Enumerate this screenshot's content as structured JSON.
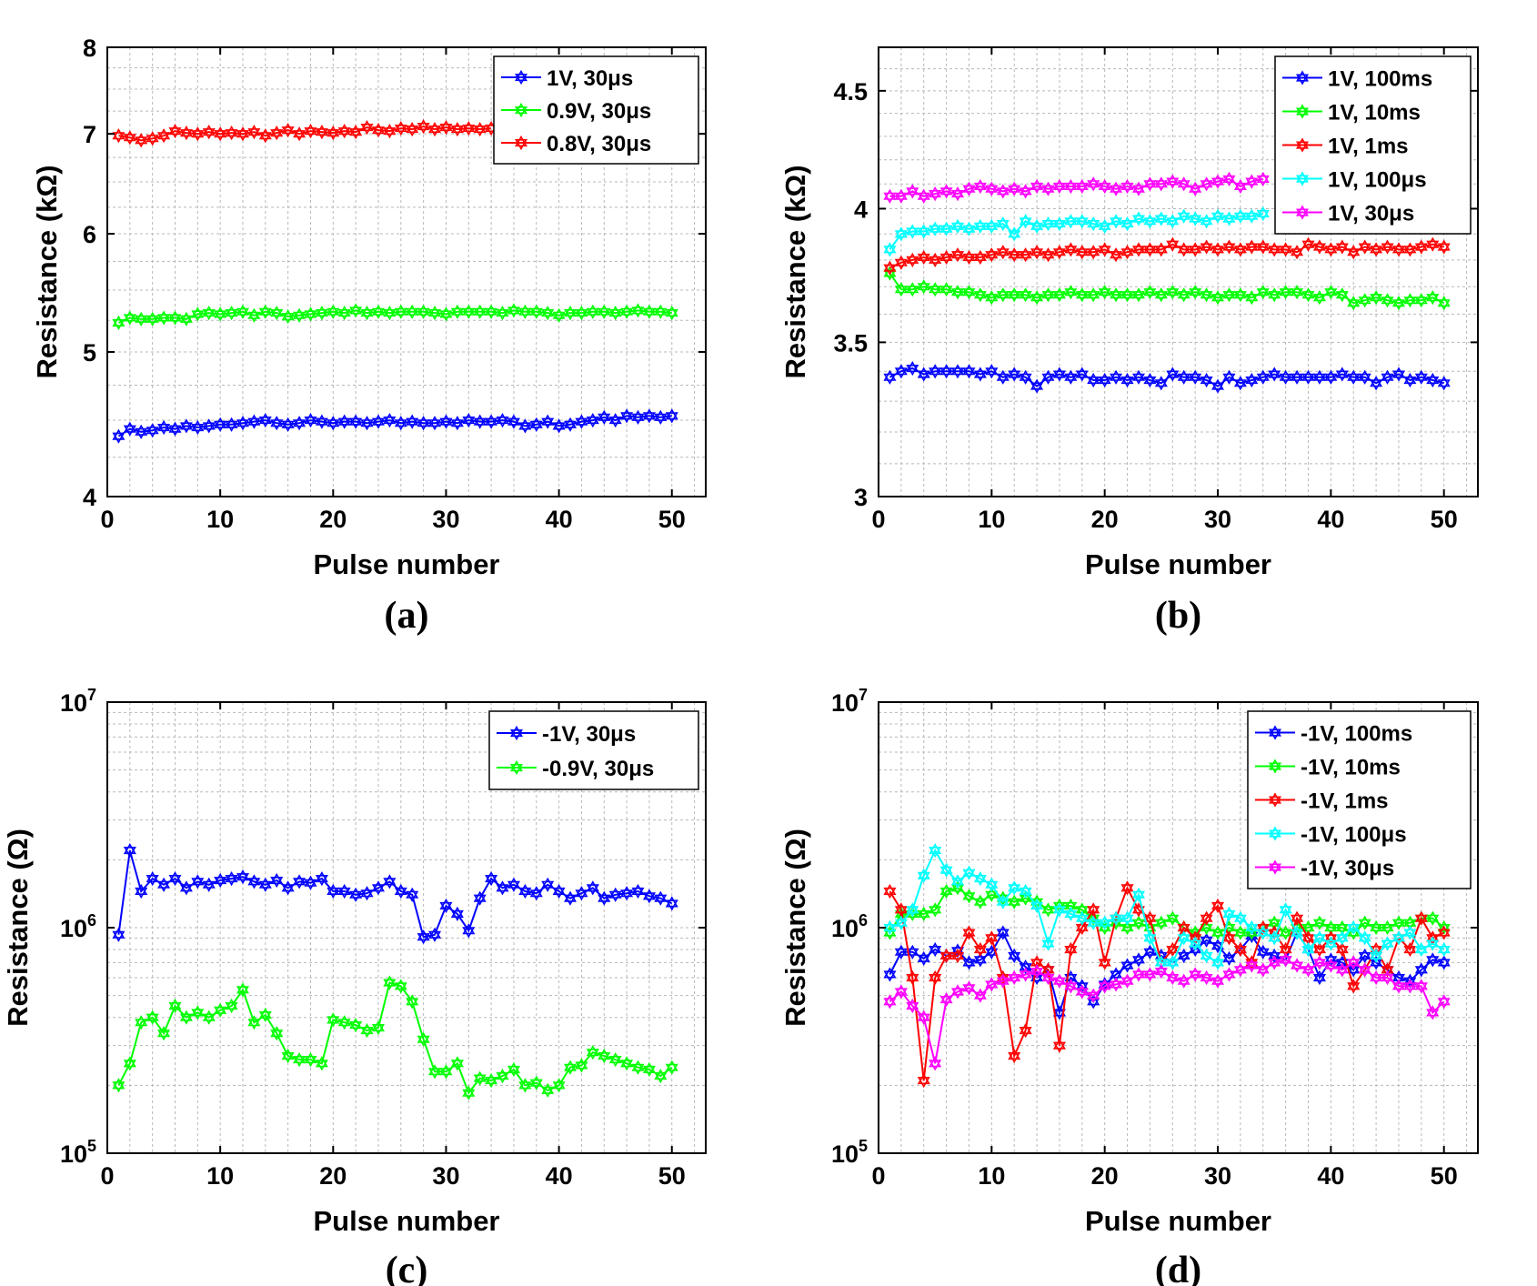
{
  "chart_data": [
    {
      "id": "a",
      "type": "line",
      "caption": "(a)",
      "xlabel": "Pulse number",
      "ylabel": "Resistance (kΩ)",
      "xlim": [
        0,
        53
      ],
      "ylim": [
        4,
        8
      ],
      "yscale": "log",
      "xticks": [
        0,
        10,
        20,
        30,
        40,
        50
      ],
      "yticks": [
        4,
        5,
        6,
        7,
        8
      ],
      "ytick_labels": [
        "4",
        "5",
        "6",
        "7",
        "8"
      ],
      "legend_position": "top-right",
      "series": [
        {
          "name": "1V, 30μs",
          "color": "#0000ff",
          "values": [
            4.39,
            4.44,
            4.42,
            4.43,
            4.45,
            4.44,
            4.46,
            4.45,
            4.46,
            4.47,
            4.47,
            4.48,
            4.49,
            4.5,
            4.48,
            4.47,
            4.48,
            4.5,
            4.49,
            4.48,
            4.49,
            4.49,
            4.48,
            4.49,
            4.5,
            4.48,
            4.49,
            4.48,
            4.48,
            4.49,
            4.48,
            4.5,
            4.49,
            4.49,
            4.5,
            4.49,
            4.46,
            4.47,
            4.49,
            4.46,
            4.47,
            4.49,
            4.5,
            4.52,
            4.5,
            4.53,
            4.52,
            4.53,
            4.52,
            4.53
          ]
        },
        {
          "name": "0.9V, 30μs",
          "color": "#00ff00",
          "values": [
            5.23,
            5.27,
            5.26,
            5.26,
            5.27,
            5.27,
            5.26,
            5.3,
            5.31,
            5.3,
            5.31,
            5.32,
            5.29,
            5.32,
            5.31,
            5.28,
            5.29,
            5.3,
            5.31,
            5.32,
            5.31,
            5.33,
            5.31,
            5.32,
            5.31,
            5.32,
            5.32,
            5.32,
            5.31,
            5.3,
            5.32,
            5.32,
            5.32,
            5.32,
            5.31,
            5.33,
            5.32,
            5.32,
            5.31,
            5.29,
            5.31,
            5.31,
            5.32,
            5.32,
            5.31,
            5.32,
            5.33,
            5.32,
            5.32,
            5.31
          ]
        },
        {
          "name": "0.8V, 30μs",
          "color": "#ff0000",
          "values": [
            6.98,
            6.96,
            6.93,
            6.95,
            6.98,
            7.03,
            7.01,
            7.0,
            7.02,
            7.0,
            7.01,
            7.0,
            7.02,
            6.98,
            7.01,
            7.04,
            7.0,
            7.03,
            7.02,
            7.01,
            7.03,
            7.02,
            7.07,
            7.04,
            7.03,
            7.06,
            7.05,
            7.08,
            7.05,
            7.07,
            7.05,
            7.06,
            7.05,
            7.06
          ]
        }
      ]
    },
    {
      "id": "b",
      "type": "line",
      "caption": "(b)",
      "xlabel": "Pulse number",
      "ylabel": "Resistance (kΩ)",
      "xlim": [
        0,
        53
      ],
      "ylim": [
        3,
        4.7
      ],
      "yscale": "log",
      "xticks": [
        0,
        10,
        20,
        30,
        40,
        50
      ],
      "yticks": [
        3,
        3.5,
        4,
        4.5
      ],
      "ytick_labels": [
        "3",
        "3.5",
        "4",
        "4.5"
      ],
      "legend_position": "top-right",
      "series": [
        {
          "name": "1V, 100ms",
          "color": "#0000ff",
          "values": [
            3.38,
            3.4,
            3.41,
            3.39,
            3.4,
            3.4,
            3.4,
            3.4,
            3.39,
            3.4,
            3.38,
            3.39,
            3.38,
            3.35,
            3.38,
            3.39,
            3.38,
            3.39,
            3.37,
            3.37,
            3.38,
            3.37,
            3.38,
            3.37,
            3.36,
            3.39,
            3.38,
            3.38,
            3.37,
            3.35,
            3.38,
            3.36,
            3.37,
            3.38,
            3.39,
            3.38,
            3.38,
            3.38,
            3.38,
            3.38,
            3.39,
            3.38,
            3.38,
            3.36,
            3.38,
            3.39,
            3.37,
            3.38,
            3.37,
            3.36
          ]
        },
        {
          "name": "1V, 10ms",
          "color": "#00ff00",
          "values": [
            3.75,
            3.69,
            3.69,
            3.7,
            3.69,
            3.69,
            3.68,
            3.68,
            3.67,
            3.66,
            3.67,
            3.67,
            3.67,
            3.66,
            3.67,
            3.67,
            3.68,
            3.67,
            3.67,
            3.68,
            3.67,
            3.67,
            3.67,
            3.68,
            3.67,
            3.68,
            3.67,
            3.68,
            3.67,
            3.66,
            3.67,
            3.67,
            3.66,
            3.68,
            3.67,
            3.68,
            3.68,
            3.67,
            3.66,
            3.68,
            3.67,
            3.64,
            3.65,
            3.66,
            3.65,
            3.64,
            3.65,
            3.65,
            3.66,
            3.64
          ]
        },
        {
          "name": "1V, 1ms",
          "color": "#ff0000",
          "values": [
            3.77,
            3.79,
            3.8,
            3.81,
            3.8,
            3.81,
            3.82,
            3.81,
            3.81,
            3.82,
            3.83,
            3.82,
            3.82,
            3.83,
            3.82,
            3.83,
            3.84,
            3.83,
            3.83,
            3.84,
            3.82,
            3.83,
            3.84,
            3.84,
            3.84,
            3.86,
            3.84,
            3.84,
            3.85,
            3.84,
            3.85,
            3.84,
            3.85,
            3.85,
            3.84,
            3.84,
            3.83,
            3.86,
            3.85,
            3.84,
            3.85,
            3.83,
            3.85,
            3.84,
            3.85,
            3.84,
            3.84,
            3.85,
            3.86,
            3.85
          ]
        },
        {
          "name": "1V, 100μs",
          "color": "#00ffff",
          "values": [
            3.84,
            3.9,
            3.91,
            3.91,
            3.92,
            3.92,
            3.93,
            3.92,
            3.93,
            3.93,
            3.94,
            3.9,
            3.95,
            3.93,
            3.94,
            3.94,
            3.95,
            3.95,
            3.94,
            3.93,
            3.95,
            3.94,
            3.96,
            3.95,
            3.96,
            3.95,
            3.97,
            3.96,
            3.95,
            3.97,
            3.96,
            3.97,
            3.97,
            3.98
          ]
        },
        {
          "name": "1V, 30μs",
          "color": "#ff00ff",
          "values": [
            4.05,
            4.05,
            4.07,
            4.05,
            4.06,
            4.07,
            4.06,
            4.08,
            4.09,
            4.08,
            4.07,
            4.08,
            4.07,
            4.09,
            4.08,
            4.09,
            4.09,
            4.09,
            4.1,
            4.09,
            4.08,
            4.09,
            4.08,
            4.1,
            4.1,
            4.11,
            4.1,
            4.08,
            4.1,
            4.11,
            4.12,
            4.09,
            4.11,
            4.12
          ]
        }
      ]
    },
    {
      "id": "c",
      "type": "line",
      "caption": "(c)",
      "xlabel": "Pulse number",
      "ylabel": "Resistance (Ω)",
      "xlim": [
        0,
        53
      ],
      "ylim": [
        100000,
        10000000
      ],
      "yscale": "log",
      "xticks": [
        0,
        10,
        20,
        30,
        40,
        50
      ],
      "yticks": [
        100000,
        1000000,
        10000000
      ],
      "ytick_labels": [
        [
          "10",
          "5"
        ],
        [
          "10",
          "6"
        ],
        [
          "10",
          "7"
        ]
      ],
      "legend_position": "top-right",
      "series": [
        {
          "name": "-1V, 30μs",
          "color": "#0000ff",
          "values": [
            930000,
            2200000,
            1450000,
            1650000,
            1550000,
            1650000,
            1500000,
            1600000,
            1550000,
            1620000,
            1650000,
            1680000,
            1600000,
            1550000,
            1620000,
            1500000,
            1600000,
            1580000,
            1650000,
            1450000,
            1450000,
            1400000,
            1420000,
            1500000,
            1600000,
            1450000,
            1400000,
            910000,
            930000,
            1250000,
            1150000,
            970000,
            1350000,
            1650000,
            1500000,
            1550000,
            1450000,
            1420000,
            1550000,
            1450000,
            1350000,
            1420000,
            1500000,
            1350000,
            1400000,
            1420000,
            1450000,
            1380000,
            1350000,
            1280000
          ]
        },
        {
          "name": "-0.9V, 30μs",
          "color": "#00ff00",
          "values": [
            200000,
            250000,
            380000,
            400000,
            340000,
            450000,
            400000,
            420000,
            400000,
            430000,
            450000,
            530000,
            380000,
            410000,
            340000,
            270000,
            260000,
            260000,
            250000,
            390000,
            380000,
            370000,
            350000,
            360000,
            570000,
            550000,
            470000,
            320000,
            230000,
            230000,
            250000,
            185000,
            215000,
            210000,
            220000,
            235000,
            200000,
            205000,
            190000,
            200000,
            240000,
            245000,
            280000,
            270000,
            260000,
            250000,
            240000,
            235000,
            220000,
            240000
          ]
        }
      ]
    },
    {
      "id": "d",
      "type": "line",
      "caption": "(d)",
      "xlabel": "Pulse number",
      "ylabel": "Resistance (Ω)",
      "xlim": [
        0,
        53
      ],
      "ylim": [
        100000,
        10000000
      ],
      "yscale": "log",
      "xticks": [
        0,
        10,
        20,
        30,
        40,
        50
      ],
      "yticks": [
        100000,
        1000000,
        10000000
      ],
      "ytick_labels": [
        [
          "10",
          "5"
        ],
        [
          "10",
          "6"
        ],
        [
          "10",
          "7"
        ]
      ],
      "legend_position": "top-right",
      "series": [
        {
          "name": "-1V, 100ms",
          "color": "#0000ff",
          "values": [
            620000,
            780000,
            780000,
            730000,
            800000,
            750000,
            790000,
            700000,
            720000,
            780000,
            950000,
            750000,
            670000,
            600000,
            650000,
            420000,
            600000,
            550000,
            470000,
            560000,
            620000,
            680000,
            720000,
            780000,
            750000,
            700000,
            750000,
            800000,
            880000,
            830000,
            730000,
            800000,
            920000,
            780000,
            750000,
            720000,
            950000,
            800000,
            600000,
            720000,
            700000,
            650000,
            750000,
            700000,
            650000,
            600000,
            580000,
            650000,
            720000,
            700000
          ]
        },
        {
          "name": "-1V, 10ms",
          "color": "#00ff00",
          "values": [
            950000,
            1150000,
            1150000,
            1150000,
            1200000,
            1450000,
            1500000,
            1380000,
            1300000,
            1400000,
            1350000,
            1300000,
            1350000,
            1300000,
            1200000,
            1250000,
            1250000,
            1200000,
            1100000,
            1000000,
            1050000,
            1000000,
            1050000,
            1000000,
            1050000,
            1100000,
            1000000,
            950000,
            1000000,
            950000,
            1000000,
            950000,
            950000,
            1000000,
            1050000,
            950000,
            1000000,
            1000000,
            1050000,
            1000000,
            1000000,
            950000,
            1050000,
            1000000,
            1000000,
            1050000,
            1050000,
            1100000,
            1100000,
            1000000
          ]
        },
        {
          "name": "-1V, 1ms",
          "color": "#ff0000",
          "values": [
            1450000,
            1200000,
            600000,
            210000,
            600000,
            750000,
            750000,
            950000,
            800000,
            900000,
            600000,
            270000,
            350000,
            700000,
            650000,
            300000,
            800000,
            1000000,
            1200000,
            700000,
            1100000,
            1500000,
            1200000,
            1100000,
            700000,
            800000,
            1000000,
            900000,
            1100000,
            1250000,
            900000,
            800000,
            700000,
            1000000,
            950000,
            800000,
            1100000,
            900000,
            800000,
            900000,
            800000,
            550000,
            650000,
            800000,
            650000,
            900000,
            800000,
            1100000,
            900000,
            950000
          ]
        },
        {
          "name": "-1V, 100μs",
          "color": "#00ffff",
          "values": [
            1000000,
            1050000,
            1200000,
            1700000,
            2200000,
            1800000,
            1600000,
            1750000,
            1650000,
            1550000,
            1300000,
            1500000,
            1450000,
            1250000,
            850000,
            1200000,
            1150000,
            1100000,
            1050000,
            1050000,
            1100000,
            1100000,
            1400000,
            900000,
            700000,
            700000,
            900000,
            850000,
            750000,
            700000,
            1150000,
            1100000,
            1000000,
            950000,
            900000,
            1200000,
            950000,
            800000,
            900000,
            850000,
            900000,
            1000000,
            900000,
            750000,
            850000,
            900000,
            950000,
            800000,
            850000,
            800000
          ]
        },
        {
          "name": "-1V, 30μs",
          "color": "#ff00ff",
          "values": [
            470000,
            520000,
            450000,
            400000,
            250000,
            480000,
            520000,
            540000,
            500000,
            560000,
            580000,
            600000,
            620000,
            640000,
            600000,
            580000,
            550000,
            520000,
            500000,
            550000,
            560000,
            580000,
            620000,
            620000,
            640000,
            600000,
            580000,
            620000,
            600000,
            580000,
            620000,
            650000,
            680000,
            650000,
            700000,
            720000,
            680000,
            650000,
            700000,
            680000,
            650000,
            700000,
            650000,
            600000,
            600000,
            550000,
            550000,
            550000,
            420000,
            470000
          ]
        }
      ]
    }
  ]
}
